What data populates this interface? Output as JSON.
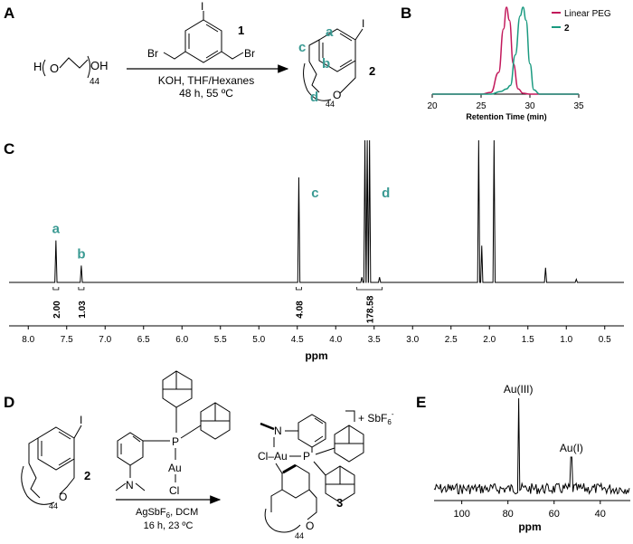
{
  "panels": {
    "a": "A",
    "b": "B",
    "c": "C",
    "d": "D",
    "e": "E"
  },
  "scheme_a": {
    "peg_h": "H",
    "peg_o": "O",
    "peg_oh": "OH",
    "peg_n": "44",
    "reagent_i": "I",
    "reagent_br_left": "Br",
    "reagent_br_right": "Br",
    "reagent_id": "1",
    "conditions_1": "KOH, THF/Hexanes",
    "conditions_2": "48 h, 55 ºC",
    "product_i": "I",
    "product_o": "O",
    "product_n": "44",
    "product_id": "2",
    "label_a": "a",
    "label_b": "b",
    "label_c": "c",
    "label_d": "d"
  },
  "panel_b_chart": {
    "legend": [
      {
        "name": "Linear PEG",
        "color": "#c2185b"
      },
      {
        "name": "2",
        "color": "#1a9a80"
      }
    ],
    "xlabel": "Retention Time (min)",
    "xticks": [
      "20",
      "25",
      "30",
      "35"
    ]
  },
  "panel_c_chart": {
    "xlabel": "ppm",
    "xticks": [
      "8.0",
      "7.5",
      "7.0",
      "6.5",
      "6.0",
      "5.5",
      "5.0",
      "4.5",
      "4.0",
      "3.5",
      "3.0",
      "2.5",
      "2.0",
      "1.5",
      "1.0",
      "0.5"
    ],
    "peak_labels": [
      "a",
      "b",
      "c",
      "d"
    ],
    "integrals": [
      "2.00",
      "1.03",
      "4.08",
      "178.58"
    ]
  },
  "scheme_d": {
    "p_label": "P",
    "n_label": "N",
    "au_label": "Au",
    "cl_label": "Cl",
    "reactant_i": "I",
    "reactant_o": "O",
    "reactant_n": "44",
    "reactant_id": "2",
    "conditions_1": "AgSbF",
    "conditions_1_sub": "6",
    "conditions_1_tail": ", DCM",
    "conditions_2": "16 h, 23 ºC",
    "product_cl_au": "Cl–Au",
    "product_n": "N",
    "product_p": "P",
    "product_o": "O",
    "product_chain_n": "44",
    "product_id": "3",
    "counterion": "+ SbF",
    "counterion_sub": "6",
    "counterion_sup": "-"
  },
  "panel_e_chart": {
    "peak_labels": [
      "Au(III)",
      "Au(I)"
    ],
    "xlabel": "ppm",
    "xticks": [
      "100",
      "80",
      "60",
      "40"
    ]
  },
  "chart_data": [
    {
      "type": "line",
      "title": "",
      "xlabel": "Retention Time (min)",
      "ylabel": "",
      "xlim": [
        20,
        35
      ],
      "legend_position": "top-right",
      "grid": false,
      "series": [
        {
          "name": "Linear PEG",
          "color": "#c2185b",
          "x": [
            20,
            25,
            26,
            26.8,
            27.3,
            27.6,
            27.9,
            28.3,
            28.8,
            29.3,
            30,
            35
          ],
          "y": [
            0,
            0,
            0.02,
            0.25,
            0.75,
            1.0,
            0.85,
            0.35,
            0.06,
            0.01,
            0,
            0
          ]
        },
        {
          "name": "2",
          "color": "#1a9a80",
          "x": [
            20,
            26,
            27,
            27.6,
            28.0,
            28.5,
            29.0,
            29.3,
            29.6,
            30.0,
            30.4,
            31,
            35
          ],
          "y": [
            0,
            0,
            0.03,
            0.06,
            0.1,
            0.45,
            0.9,
            1.0,
            0.85,
            0.35,
            0.05,
            0,
            0
          ]
        }
      ]
    },
    {
      "type": "line",
      "title": "",
      "xlabel": "ppm",
      "xlim": [
        8.25,
        0.25
      ],
      "grid": false,
      "peaks": [
        {
          "ppm": 7.64,
          "height": 0.4,
          "label": "a",
          "integral": "2.00"
        },
        {
          "ppm": 7.31,
          "height": 0.16,
          "label": "b",
          "integral": "1.03"
        },
        {
          "ppm": 4.48,
          "height": 1.0,
          "label": "c",
          "integral": "4.08"
        },
        {
          "ppm": 3.62,
          "height": 1.2,
          "label": "",
          "integral": ""
        },
        {
          "ppm": 3.59,
          "height": 1.2,
          "label": "",
          "integral": ""
        },
        {
          "ppm": 3.56,
          "height": 1.2,
          "label": "d",
          "integral": "178.58"
        },
        {
          "ppm": 3.66,
          "height": 0.05,
          "label": "",
          "integral": ""
        },
        {
          "ppm": 3.43,
          "height": 0.05,
          "label": "",
          "integral": ""
        },
        {
          "ppm": 2.14,
          "height": 1.2,
          "label": "",
          "integral": ""
        },
        {
          "ppm": 2.1,
          "height": 0.35,
          "label": "",
          "integral": ""
        },
        {
          "ppm": 1.94,
          "height": 1.2,
          "label": "",
          "integral": ""
        },
        {
          "ppm": 1.27,
          "height": 0.14,
          "label": "",
          "integral": ""
        },
        {
          "ppm": 0.87,
          "height": 0.03,
          "label": "",
          "integral": ""
        }
      ]
    },
    {
      "type": "line",
      "title": "",
      "xlabel": "ppm",
      "xlim": [
        112,
        27
      ],
      "grid": false,
      "peaks": [
        {
          "ppm": 75.5,
          "height": 1.0,
          "label": "Au(III)"
        },
        {
          "ppm": 52.5,
          "height": 0.35,
          "label": "Au(I)"
        }
      ]
    }
  ]
}
